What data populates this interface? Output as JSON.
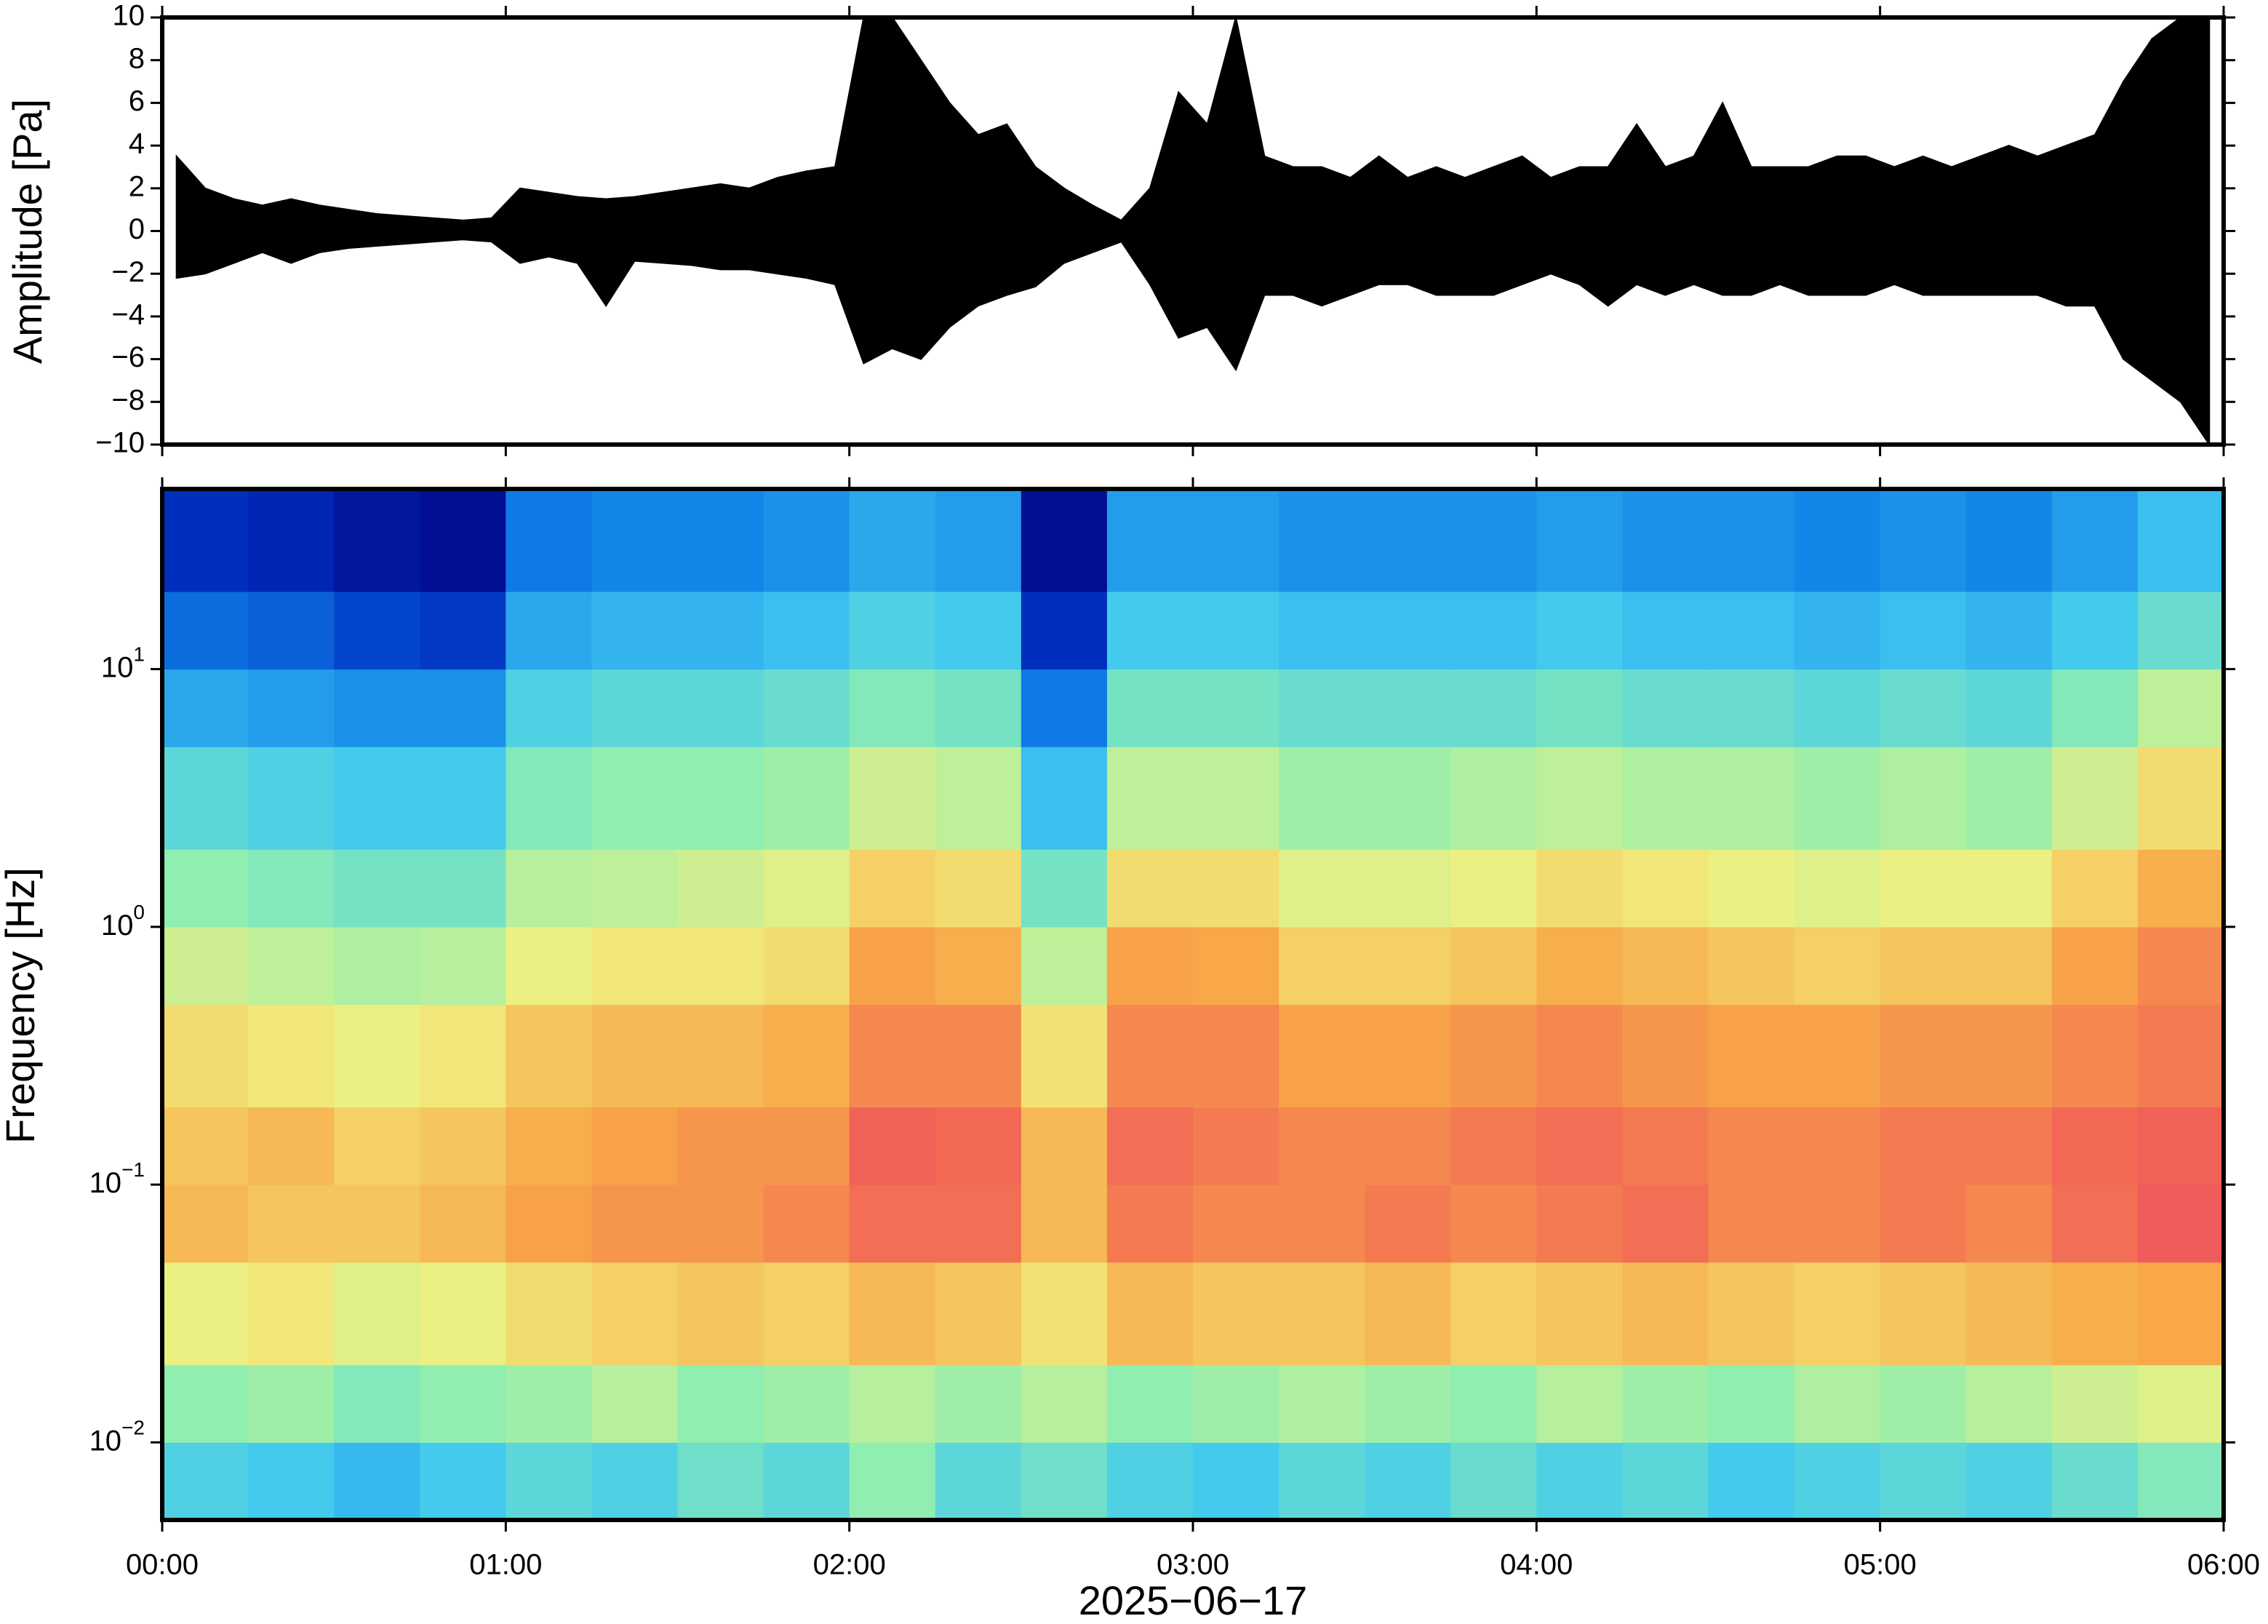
{
  "chart_data": [
    {
      "type": "area",
      "ylabel": "Amplitude [Pa]",
      "color": "#000000",
      "x": [
        2.5,
        7.5,
        12.5,
        17.5,
        22.5,
        27.5,
        32.5,
        37.5,
        42.5,
        47.5,
        52.5,
        57.5,
        62.5,
        67.5,
        72.5,
        77.5,
        82.5,
        87.5,
        92.5,
        97.5,
        102.5,
        107.5,
        112.5,
        117.5,
        122.5,
        127.5,
        132.5,
        137.5,
        142.5,
        147.5,
        152.5,
        157.5,
        162.5,
        167.5,
        172.5,
        177.5,
        182.5,
        187.5,
        192.5,
        197.5,
        202.5,
        207.5,
        212.5,
        217.5,
        222.5,
        227.5,
        232.5,
        237.5,
        242.5,
        247.5,
        252.5,
        257.5,
        262.5,
        267.5,
        272.5,
        277.5,
        282.5,
        287.5,
        292.5,
        297.5,
        302.5,
        307.5,
        312.5,
        317.5,
        322.5,
        327.5,
        332.5,
        337.5,
        342.5,
        347.5,
        352.5,
        357.5
      ],
      "series": [
        {
          "values": [
            3.5,
            2,
            1.5,
            1.2,
            1.5,
            1.2,
            1,
            0.8,
            0.7,
            0.6,
            0.5,
            0.6,
            2,
            1.8,
            1.6,
            1.5,
            1.6,
            1.8,
            2,
            2.2,
            2,
            2.5,
            2.8,
            3,
            10,
            10,
            8,
            6,
            4.5,
            5,
            3,
            2,
            1.2,
            0.5,
            2,
            6.5,
            5,
            10,
            3.5,
            3,
            3,
            2.5,
            3.5,
            2.5,
            3,
            2.5,
            3,
            3.5,
            2.5,
            3,
            3,
            5,
            3,
            3.5,
            6,
            3,
            3,
            3,
            3.5,
            3.5,
            3,
            3.5,
            3,
            3.5,
            4,
            3.5,
            4,
            4.5,
            7,
            9,
            10,
            10
          ]
        },
        {
          "values": [
            -2.2,
            -2,
            -1.5,
            -1,
            -1.5,
            -1,
            -0.8,
            -0.7,
            -0.6,
            -0.5,
            -0.4,
            -0.5,
            -1.5,
            -1.2,
            -1.5,
            -3.5,
            -1.4,
            -1.5,
            -1.6,
            -1.8,
            -1.8,
            -2,
            -2.2,
            -2.5,
            -6.2,
            -5.5,
            -6,
            -4.5,
            -3.5,
            -3,
            -2.6,
            -1.5,
            -1,
            -0.5,
            -2.5,
            -5,
            -4.5,
            -6.5,
            -3,
            -3,
            -3.5,
            -3,
            -2.5,
            -2.5,
            -3,
            -3,
            -3,
            -2.5,
            -2,
            -2.5,
            -3.5,
            -2.5,
            -3,
            -2.5,
            -3,
            -3,
            -2.5,
            -3,
            -3,
            -3,
            -2.5,
            -3,
            -3,
            -3,
            -3,
            -3,
            -3.5,
            -3.5,
            -6,
            -7,
            -8,
            -10
          ]
        }
      ],
      "xlim": [
        0,
        360
      ],
      "xticks": [
        0,
        60,
        120,
        180,
        240,
        300,
        360
      ],
      "ylim": [
        -10,
        10
      ],
      "yticks": [
        {
          "value": -10,
          "label": "−10"
        },
        {
          "value": -8,
          "label": "−8"
        },
        {
          "value": -6,
          "label": "−6"
        },
        {
          "value": -4,
          "label": "−4"
        },
        {
          "value": -2,
          "label": "−2"
        },
        0,
        2,
        4,
        6,
        8,
        10
      ]
    },
    {
      "type": "heatmap",
      "ylabel": "Frequency [Hz]",
      "xlabel": "2025−06−17",
      "log_y": true,
      "xlim": [
        0,
        360
      ],
      "xticks": [
        {
          "value": 0,
          "label": "00:00"
        },
        {
          "value": 60,
          "label": "01:00"
        },
        {
          "value": 120,
          "label": "02:00"
        },
        {
          "value": 180,
          "label": "03:00"
        },
        {
          "value": 240,
          "label": "04:00"
        },
        {
          "value": 300,
          "label": "05:00"
        },
        {
          "value": 360,
          "label": "06:00"
        }
      ],
      "ylim": [
        0.005,
        50
      ],
      "yticks": [
        {
          "value": 0.01,
          "label": "10",
          "exponent": "−2"
        },
        {
          "value": 0.1,
          "label": "10",
          "exponent": "−1"
        },
        {
          "value": 1,
          "label": "10",
          "exponent": "0"
        },
        {
          "value": 10,
          "label": "10",
          "exponent": "1"
        }
      ],
      "x_bins": [
        0,
        15,
        30,
        45,
        60,
        75,
        90,
        105,
        120,
        135,
        150,
        165,
        180,
        195,
        210,
        225,
        240,
        255,
        270,
        285,
        300,
        315,
        330,
        345,
        360
      ],
      "y_bins": [
        0.005,
        0.01,
        0.02,
        0.05,
        0.1,
        0.2,
        0.5,
        1,
        2,
        5,
        10,
        20,
        50
      ],
      "zlim": [
        0,
        100
      ],
      "colormap": [
        "#00007f",
        "#0030c0",
        "#1080e8",
        "#40c8f0",
        "#90eeb0",
        "#f0f080",
        "#f8a848",
        "#f05858",
        "#f8b0b0"
      ],
      "z": [
        [
          40,
          38,
          35,
          38,
          42,
          40,
          45,
          42,
          50,
          42,
          45,
          40,
          38,
          42,
          40,
          44,
          40,
          42,
          38,
          40,
          42,
          40,
          44,
          48
        ],
        [
          50,
          52,
          48,
          50,
          52,
          55,
          50,
          52,
          55,
          52,
          55,
          50,
          52,
          54,
          52,
          50,
          55,
          52,
          50,
          54,
          52,
          55,
          58,
          60
        ],
        [
          62,
          64,
          60,
          62,
          66,
          68,
          70,
          68,
          72,
          70,
          65,
          72,
          70,
          70,
          72,
          68,
          70,
          72,
          70,
          68,
          70,
          72,
          74,
          75
        ],
        [
          72,
          70,
          70,
          72,
          76,
          78,
          78,
          80,
          84,
          84,
          72,
          82,
          80,
          80,
          82,
          80,
          82,
          84,
          80,
          80,
          82,
          80,
          84,
          88
        ],
        [
          70,
          72,
          68,
          70,
          74,
          76,
          78,
          78,
          86,
          85,
          72,
          84,
          82,
          80,
          80,
          82,
          84,
          82,
          80,
          80,
          82,
          82,
          85,
          86
        ],
        [
          66,
          64,
          62,
          64,
          70,
          72,
          72,
          74,
          80,
          80,
          65,
          80,
          80,
          76,
          76,
          78,
          80,
          78,
          76,
          76,
          78,
          78,
          80,
          82
        ],
        [
          58,
          56,
          54,
          55,
          62,
          64,
          64,
          66,
          76,
          74,
          56,
          76,
          75,
          68,
          68,
          70,
          74,
          72,
          70,
          68,
          70,
          70,
          76,
          80
        ],
        [
          50,
          48,
          46,
          46,
          55,
          56,
          58,
          60,
          68,
          66,
          46,
          66,
          66,
          60,
          60,
          62,
          66,
          64,
          62,
          60,
          62,
          62,
          68,
          74
        ],
        [
          42,
          40,
          38,
          38,
          48,
          50,
          50,
          52,
          58,
          56,
          36,
          56,
          56,
          52,
          52,
          54,
          56,
          54,
          54,
          52,
          54,
          52,
          58,
          66
        ],
        [
          32,
          30,
          28,
          28,
          40,
          42,
          42,
          44,
          48,
          46,
          24,
          46,
          46,
          44,
          44,
          44,
          46,
          44,
          44,
          42,
          44,
          42,
          48,
          56
        ],
        [
          22,
          20,
          16,
          14,
          32,
          34,
          34,
          36,
          40,
          38,
          12,
          38,
          38,
          36,
          36,
          36,
          38,
          36,
          36,
          34,
          36,
          34,
          38,
          44
        ],
        [
          12,
          10,
          6,
          4,
          24,
          26,
          26,
          28,
          32,
          30,
          4,
          30,
          30,
          28,
          28,
          28,
          30,
          28,
          28,
          26,
          28,
          26,
          30,
          36
        ]
      ]
    }
  ]
}
